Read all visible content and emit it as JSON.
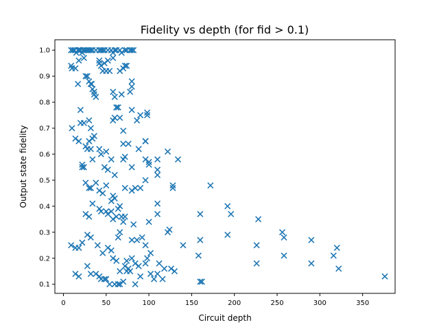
{
  "chart_data": {
    "type": "scatter",
    "title": "Fidelity vs depth (for fid > 0.1)",
    "xlabel": "Circuit depth",
    "ylabel": "Output state fidelity",
    "xlim": [
      -10,
      388
    ],
    "ylim": [
      0.065,
      1.04
    ],
    "xticks": [
      0,
      50,
      100,
      150,
      200,
      250,
      300,
      350
    ],
    "yticks": [
      0.1,
      0.2,
      0.3,
      0.4,
      0.5,
      0.6,
      0.7,
      0.8,
      0.9,
      1.0
    ],
    "ytick_labels": [
      "0.1",
      "0.2",
      "0.3",
      "0.4",
      "0.5",
      "0.6",
      "0.7",
      "0.8",
      "0.9",
      "1.0"
    ],
    "grid": false,
    "marker": "x",
    "color": "#1f77b4",
    "x": [
      9,
      11,
      13,
      15,
      17,
      18,
      19,
      20,
      22,
      23,
      24,
      26,
      28,
      30,
      32,
      34,
      38,
      42,
      44,
      46,
      48,
      52,
      56,
      58,
      60,
      62,
      66,
      68,
      72,
      74,
      78,
      80,
      82,
      9,
      10,
      14,
      18,
      24,
      26,
      28,
      30,
      32,
      33,
      34,
      36,
      36,
      38,
      42,
      42,
      44,
      46,
      48,
      50,
      52,
      54,
      58,
      58,
      60,
      62,
      66,
      68,
      70,
      72,
      74,
      78,
      80,
      80,
      17,
      20,
      24,
      30,
      32,
      34,
      36,
      58,
      60,
      62,
      64,
      66,
      70,
      80,
      86,
      90,
      96,
      96,
      98,
      98,
      10,
      14,
      18,
      22,
      24,
      26,
      28,
      30,
      32,
      34,
      42,
      44,
      48,
      50,
      52,
      56,
      60,
      70,
      72,
      76,
      80,
      88,
      96,
      100,
      110,
      20,
      22,
      26,
      30,
      32,
      38,
      42,
      46,
      50,
      56,
      58,
      60,
      64,
      66,
      68,
      70,
      72,
      80,
      84,
      90,
      96,
      100,
      110,
      110,
      122,
      128,
      128,
      134,
      26,
      30,
      34,
      42,
      44,
      50,
      52,
      56,
      58,
      62,
      64,
      66,
      70,
      72,
      80,
      82,
      86,
      92,
      96,
      100,
      110,
      110,
      122,
      124,
      130,
      140,
      158,
      160,
      160,
      172,
      192,
      192,
      196,
      226,
      226,
      228,
      256,
      258,
      258,
      290,
      290,
      316,
      320,
      322,
      9,
      14,
      18,
      22,
      28,
      32,
      40,
      46,
      52,
      56,
      58,
      62,
      66,
      72,
      74,
      76,
      80,
      84,
      88,
      96,
      102,
      110,
      126,
      160,
      162,
      376,
      14,
      18,
      28,
      32,
      38,
      42,
      44,
      48,
      50,
      54,
      60,
      64,
      66,
      70,
      74,
      78,
      84,
      90,
      98,
      102,
      106,
      112,
      116,
      118
    ],
    "y": [
      1.0,
      1.0,
      1.0,
      0.99,
      1.0,
      1.0,
      1.0,
      1.0,
      0.99,
      1.0,
      1.0,
      1.0,
      1.0,
      1.0,
      1.0,
      1.0,
      1.0,
      1.0,
      1.0,
      1.0,
      1.0,
      1.0,
      1.0,
      0.99,
      1.0,
      1.0,
      1.0,
      0.99,
      1.0,
      1.0,
      1.0,
      1.0,
      1.0,
      0.94,
      0.93,
      0.93,
      0.96,
      0.97,
      0.9,
      0.9,
      0.88,
      0.87,
      0.87,
      0.85,
      0.84,
      0.83,
      0.82,
      0.96,
      0.95,
      0.94,
      0.92,
      0.95,
      0.92,
      0.96,
      0.92,
      0.97,
      0.84,
      0.82,
      0.78,
      0.92,
      0.83,
      0.93,
      0.94,
      0.94,
      0.84,
      0.86,
      0.88,
      0.87,
      0.77,
      0.72,
      0.73,
      0.7,
      0.66,
      0.67,
      0.73,
      0.74,
      0.78,
      0.78,
      0.74,
      0.69,
      0.77,
      0.73,
      0.75,
      0.65,
      0.65,
      0.76,
      0.75,
      0.7,
      0.66,
      0.65,
      0.56,
      0.55,
      0.63,
      0.62,
      0.65,
      0.62,
      0.58,
      0.62,
      0.6,
      0.55,
      0.61,
      0.54,
      0.58,
      0.52,
      0.64,
      0.59,
      0.64,
      0.55,
      0.62,
      0.58,
      0.57,
      0.54,
      0.72,
      0.55,
      0.49,
      0.47,
      0.47,
      0.49,
      0.46,
      0.45,
      0.48,
      0.42,
      0.44,
      0.43,
      0.39,
      0.4,
      0.36,
      0.58,
      0.47,
      0.46,
      0.47,
      0.47,
      0.5,
      0.56,
      0.58,
      0.52,
      0.61,
      0.48,
      0.47,
      0.58,
      0.37,
      0.36,
      0.41,
      0.39,
      0.38,
      0.38,
      0.37,
      0.38,
      0.35,
      0.36,
      0.28,
      0.3,
      0.34,
      0.36,
      0.27,
      0.33,
      0.27,
      0.28,
      0.25,
      0.34,
      0.41,
      0.37,
      0.3,
      0.31,
      0.15,
      0.25,
      0.21,
      0.27,
      0.37,
      0.48,
      0.4,
      0.29,
      0.37,
      0.18,
      0.25,
      0.35,
      0.3,
      0.21,
      0.28,
      0.27,
      0.18,
      0.21,
      0.24,
      0.16,
      0.25,
      0.24,
      0.24,
      0.26,
      0.29,
      0.28,
      0.25,
      0.22,
      0.24,
      0.23,
      0.2,
      0.19,
      0.15,
      0.17,
      0.19,
      0.16,
      0.2,
      0.18,
      0.17,
      0.18,
      0.14,
      0.14,
      0.16,
      0.11,
      0.11,
      0.13,
      0.14,
      0.13,
      0.17,
      0.14,
      0.14,
      0.13,
      0.12,
      0.12,
      0.12,
      0.1,
      0.1,
      0.1,
      0.1,
      0.11,
      0.15,
      0.15,
      0.1,
      0.13,
      0.2,
      0.22,
      0.12,
      0.18,
      0.12,
      0.16
    ]
  }
}
